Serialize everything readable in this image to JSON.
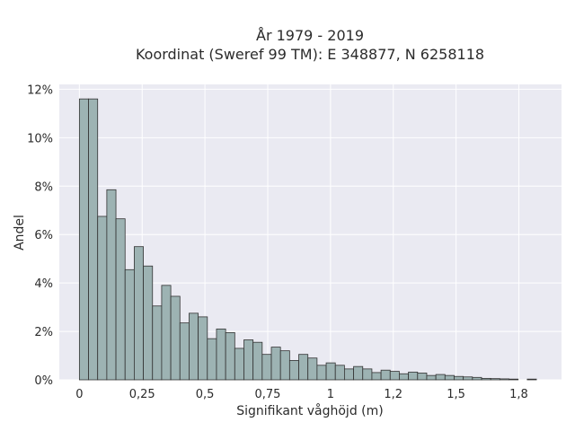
{
  "chart_data": {
    "type": "bar",
    "title": "År 1979 - 2019",
    "subtitle": "Koordinat (Sweref 99 TM): E 348877, N 6258118",
    "xlabel": "Signifikant våghöjd (m)",
    "ylabel": "Andel",
    "xlim": [
      -0.08,
      1.92
    ],
    "ylim": [
      0,
      12.2
    ],
    "x_ticks": [
      0,
      0.25,
      0.5,
      0.75,
      1,
      1.25,
      1.5,
      1.75
    ],
    "x_tick_labels": [
      "0",
      "0,25",
      "0,5",
      "0,75",
      "1",
      "1,2",
      "1,5",
      "1,8"
    ],
    "y_ticks": [
      0,
      2,
      4,
      6,
      8,
      10,
      12
    ],
    "y_tick_labels": [
      "0%",
      "2%",
      "4%",
      "6%",
      "8%",
      "10%",
      "12%"
    ],
    "bin_width": 0.0364,
    "bin_start": 0,
    "values": [
      11.6,
      11.6,
      6.75,
      7.85,
      6.65,
      4.55,
      5.5,
      4.7,
      3.05,
      3.9,
      3.45,
      2.35,
      2.75,
      2.6,
      1.7,
      2.1,
      1.95,
      1.3,
      1.65,
      1.55,
      1.05,
      1.35,
      1.2,
      0.8,
      1.05,
      0.9,
      0.6,
      0.7,
      0.6,
      0.45,
      0.55,
      0.45,
      0.3,
      0.4,
      0.35,
      0.25,
      0.32,
      0.28,
      0.18,
      0.22,
      0.18,
      0.14,
      0.12,
      0.1,
      0.06,
      0.05,
      0.04,
      0.03,
      0,
      0.03
    ],
    "grid": true,
    "colors": {
      "background": "#eaeaf2",
      "bar_fill": "#9db3b3",
      "bar_stroke": "#333333",
      "grid": "#ffffff"
    }
  }
}
